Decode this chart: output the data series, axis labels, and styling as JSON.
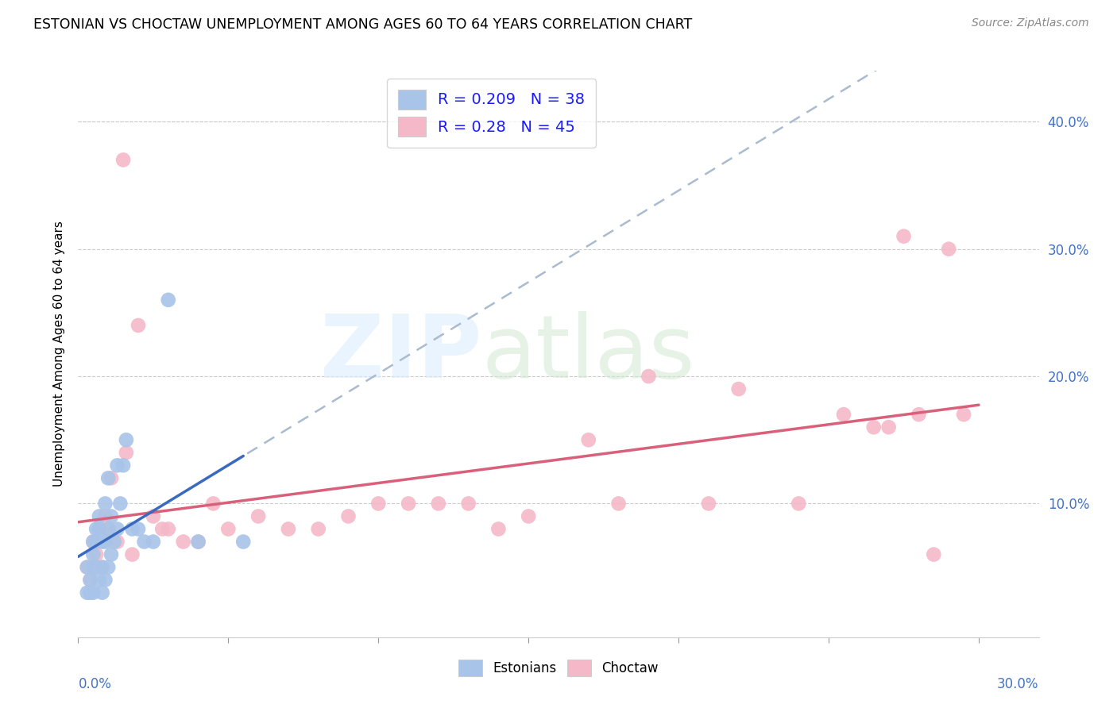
{
  "title": "ESTONIAN VS CHOCTAW UNEMPLOYMENT AMONG AGES 60 TO 64 YEARS CORRELATION CHART",
  "source": "Source: ZipAtlas.com",
  "ylabel": "Unemployment Among Ages 60 to 64 years",
  "xlim": [
    0.0,
    0.32
  ],
  "ylim": [
    -0.005,
    0.44
  ],
  "ytick_vals": [
    0.0,
    0.1,
    0.2,
    0.3,
    0.4
  ],
  "ytick_labels": [
    "",
    "10.0%",
    "20.0%",
    "30.0%",
    "40.0%"
  ],
  "xtick_vals": [
    0.0,
    0.05,
    0.1,
    0.15,
    0.2,
    0.25,
    0.3
  ],
  "estonian_R": 0.209,
  "estonian_N": 38,
  "choctaw_R": 0.28,
  "choctaw_N": 45,
  "estonian_color": "#a8c4e8",
  "choctaw_color": "#f5b8c8",
  "estonian_line_color": "#3a6abf",
  "choctaw_line_color": "#d9607a",
  "dash_line_color": "#aabbd0",
  "legend_label_estonian": "Estonians",
  "legend_label_choctaw": "Choctaw",
  "estonian_x": [
    0.003,
    0.003,
    0.004,
    0.004,
    0.005,
    0.005,
    0.005,
    0.005,
    0.006,
    0.006,
    0.006,
    0.007,
    0.007,
    0.007,
    0.008,
    0.008,
    0.008,
    0.009,
    0.009,
    0.009,
    0.01,
    0.01,
    0.01,
    0.011,
    0.011,
    0.012,
    0.013,
    0.013,
    0.014,
    0.015,
    0.016,
    0.018,
    0.02,
    0.022,
    0.025,
    0.03,
    0.04,
    0.055
  ],
  "estonian_y": [
    0.05,
    0.03,
    0.04,
    0.03,
    0.07,
    0.06,
    0.05,
    0.03,
    0.08,
    0.07,
    0.05,
    0.09,
    0.08,
    0.04,
    0.07,
    0.05,
    0.03,
    0.1,
    0.07,
    0.04,
    0.12,
    0.08,
    0.05,
    0.09,
    0.06,
    0.07,
    0.13,
    0.08,
    0.1,
    0.13,
    0.15,
    0.08,
    0.08,
    0.07,
    0.07,
    0.26,
    0.07,
    0.07
  ],
  "choctaw_x": [
    0.003,
    0.004,
    0.005,
    0.006,
    0.007,
    0.008,
    0.009,
    0.01,
    0.011,
    0.013,
    0.015,
    0.016,
    0.018,
    0.02,
    0.025,
    0.028,
    0.03,
    0.035,
    0.04,
    0.045,
    0.05,
    0.06,
    0.07,
    0.08,
    0.09,
    0.1,
    0.11,
    0.12,
    0.13,
    0.14,
    0.15,
    0.17,
    0.18,
    0.19,
    0.21,
    0.22,
    0.24,
    0.255,
    0.265,
    0.27,
    0.275,
    0.28,
    0.285,
    0.29,
    0.295
  ],
  "choctaw_y": [
    0.05,
    0.04,
    0.07,
    0.06,
    0.08,
    0.05,
    0.09,
    0.08,
    0.12,
    0.07,
    0.37,
    0.14,
    0.06,
    0.24,
    0.09,
    0.08,
    0.08,
    0.07,
    0.07,
    0.1,
    0.08,
    0.09,
    0.08,
    0.08,
    0.09,
    0.1,
    0.1,
    0.1,
    0.1,
    0.08,
    0.09,
    0.15,
    0.1,
    0.2,
    0.1,
    0.19,
    0.1,
    0.17,
    0.16,
    0.16,
    0.31,
    0.17,
    0.06,
    0.3,
    0.17
  ]
}
